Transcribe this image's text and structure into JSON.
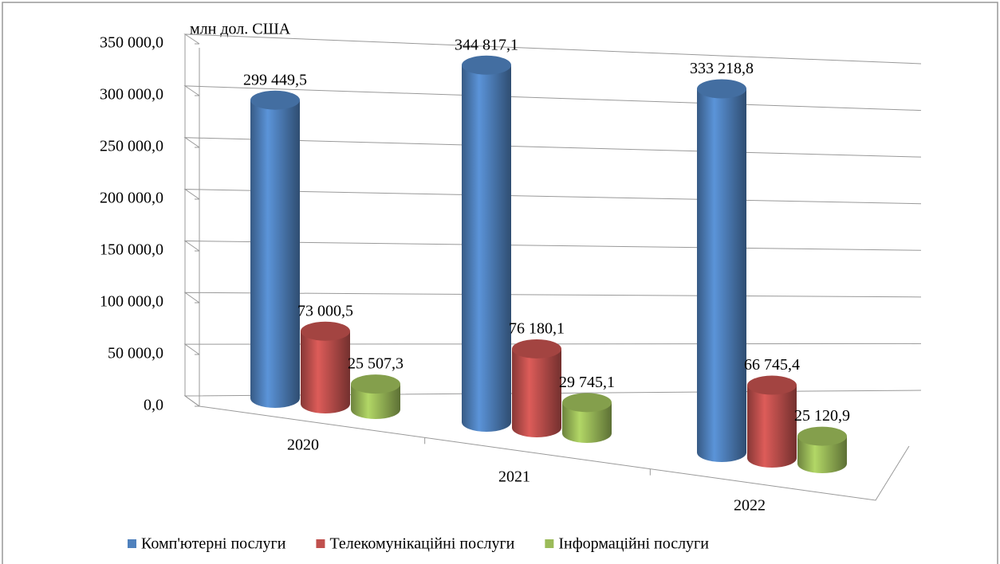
{
  "chart_data": {
    "type": "bar3d",
    "axis_label": "млн дол. США",
    "categories": [
      "2020",
      "2021",
      "2022"
    ],
    "series": [
      {
        "name": "Комп'ютерні послуги",
        "color": "#4f81bd",
        "values": [
          299449.5,
          344817.1,
          333218.8
        ],
        "value_labels": [
          "299 449,5",
          "344 817,1",
          "333 218,8"
        ]
      },
      {
        "name": "Телекомунікаційні послуги",
        "color": "#c0504d",
        "values": [
          73000.5,
          76180.1,
          66745.4
        ],
        "value_labels": [
          "73 000,5",
          "76 180,1",
          "66 745,4"
        ]
      },
      {
        "name": "Інформаційні послуги",
        "color": "#9bbb59",
        "values": [
          25507.3,
          29745.1,
          25120.9
        ],
        "value_labels": [
          "25 507,3",
          "29 745,1",
          "25 120,9"
        ]
      }
    ],
    "ylim": [
      0,
      350000
    ],
    "yticks": [
      {
        "value": 0,
        "label": "0,0"
      },
      {
        "value": 50000,
        "label": "50 000,0"
      },
      {
        "value": 100000,
        "label": "100 000,0"
      },
      {
        "value": 150000,
        "label": "150 000,0"
      },
      {
        "value": 200000,
        "label": "200 000,0"
      },
      {
        "value": 250000,
        "label": "250 000,0"
      },
      {
        "value": 300000,
        "label": "300 000,0"
      },
      {
        "value": 350000,
        "label": "350 000,0"
      }
    ],
    "grid": true,
    "legend": "bottom"
  }
}
